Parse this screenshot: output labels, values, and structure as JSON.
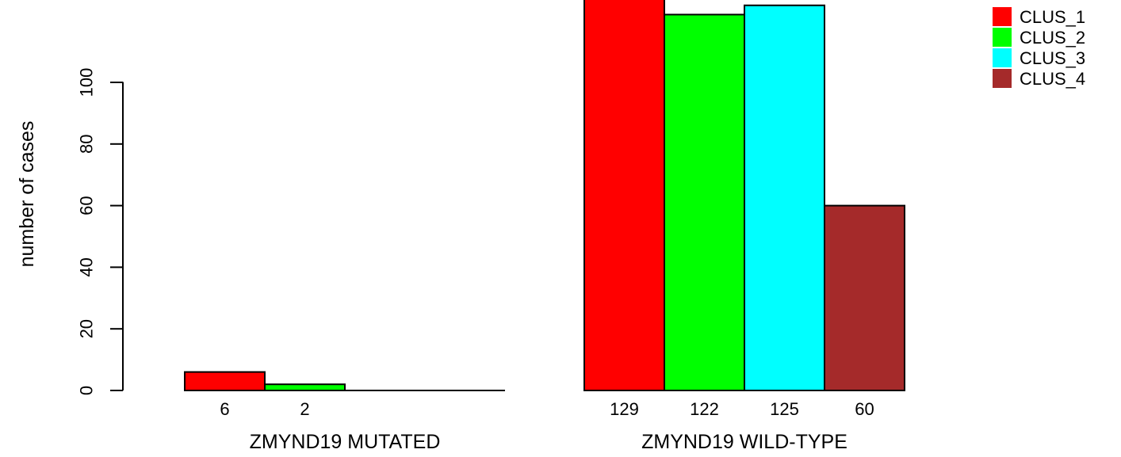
{
  "chart_data": {
    "type": "bar",
    "ylabel": "number of cases",
    "ylim": [
      0,
      129
    ],
    "yticks": [
      0,
      20,
      40,
      60,
      80,
      100
    ],
    "groups": [
      {
        "name": "ZMYND19 MUTATED",
        "values": [
          6,
          2,
          0,
          0
        ],
        "value_labels": [
          "6",
          "2",
          "",
          ""
        ]
      },
      {
        "name": "ZMYND19 WILD-TYPE",
        "values": [
          129,
          122,
          125,
          60
        ],
        "value_labels": [
          "129",
          "122",
          "125",
          "60"
        ]
      }
    ],
    "series": [
      {
        "name": "CLUS_1",
        "color": "#ff0000"
      },
      {
        "name": "CLUS_2",
        "color": "#00ff00"
      },
      {
        "name": "CLUS_3",
        "color": "#00ffff"
      },
      {
        "name": "CLUS_4",
        "color": "#a52a2a"
      }
    ],
    "legend_position": "top-right",
    "grid": false
  }
}
